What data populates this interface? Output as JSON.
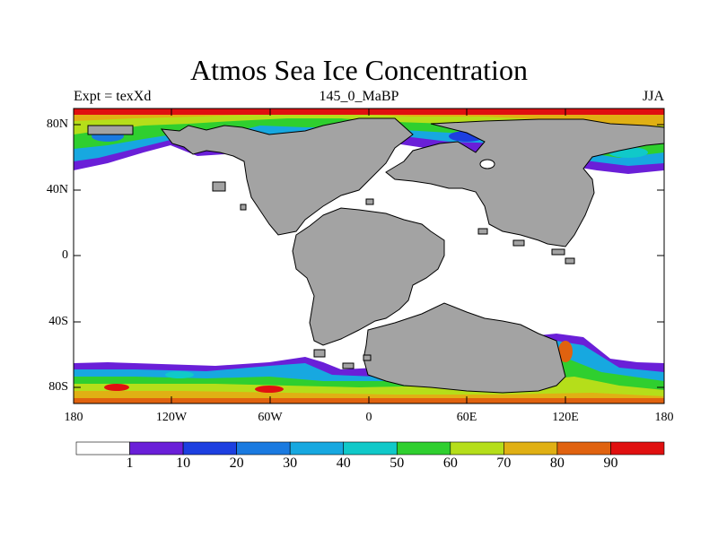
{
  "title": "Atmos Sea Ice Concentration",
  "subtitle_left": "Expt = texXd",
  "subtitle_center": "145_0_MaBP",
  "subtitle_right": "JJA",
  "lat_labels": [
    "80N",
    "40N",
    "0",
    "40S",
    "80S"
  ],
  "lon_labels": [
    "180",
    "120W",
    "60W",
    "0",
    "60E",
    "120E",
    "180"
  ],
  "colorbar": {
    "labels": [
      "1",
      "10",
      "20",
      "30",
      "40",
      "50",
      "60",
      "70",
      "80",
      "90"
    ],
    "colors": [
      "#ffffff",
      "#6a1fd8",
      "#1d3fe0",
      "#1a7ae0",
      "#17a8e0",
      "#10c9c9",
      "#2fcf2f",
      "#b5de1a",
      "#e0b014",
      "#e0620f",
      "#e01010"
    ]
  },
  "land_color": "#a3a3a3"
}
